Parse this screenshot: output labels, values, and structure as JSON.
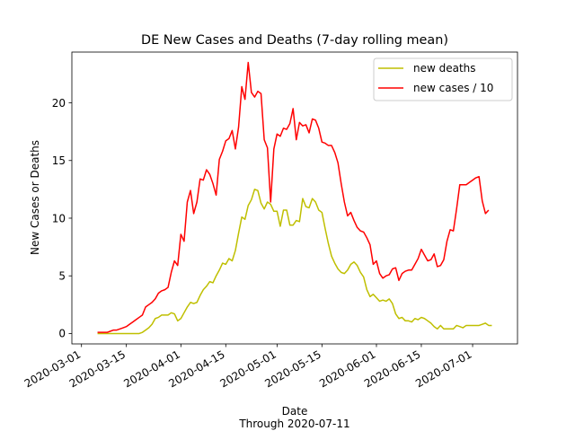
{
  "chart_data": {
    "type": "line",
    "title": "DE New Cases and Deaths (7-day rolling mean)",
    "xlabel": "Date",
    "xlabel_sub": "Through 2020-07-11",
    "ylabel": "New Cases or Deaths",
    "xlim": [
      "2020-02-27",
      "2020-07-15"
    ],
    "ylim": [
      -0.9,
      24.4
    ],
    "x_ticks": [
      "2020-03-01",
      "2020-03-15",
      "2020-04-01",
      "2020-04-15",
      "2020-05-01",
      "2020-05-15",
      "2020-06-01",
      "2020-06-15",
      "2020-07-01"
    ],
    "y_ticks": [
      0,
      5,
      10,
      15,
      20
    ],
    "grid": false,
    "legend_position": "top-right",
    "x_start": "2020-03-06",
    "series": [
      {
        "name": "new deaths",
        "color": "#bfbf00",
        "values": [
          0,
          0,
          0,
          0,
          0,
          0,
          0,
          0,
          0,
          0,
          0,
          0,
          0,
          0,
          0.1,
          0.3,
          0.5,
          0.8,
          1.3,
          1.4,
          1.6,
          1.6,
          1.6,
          1.8,
          1.7,
          1.1,
          1.3,
          1.8,
          2.3,
          2.7,
          2.6,
          2.7,
          3.3,
          3.8,
          4.1,
          4.5,
          4.4,
          5.0,
          5.5,
          6.1,
          6.0,
          6.5,
          6.3,
          7.2,
          8.7,
          10.1,
          9.9,
          11.1,
          11.6,
          12.5,
          12.4,
          11.3,
          10.8,
          11.4,
          11.2,
          10.6,
          10.6,
          9.3,
          10.7,
          10.7,
          9.4,
          9.4,
          9.8,
          9.7,
          11.7,
          11.0,
          10.9,
          11.7,
          11.4,
          10.7,
          10.5,
          9.1,
          7.8,
          6.7,
          6.1,
          5.6,
          5.3,
          5.2,
          5.5,
          6.0,
          6.2,
          5.9,
          5.3,
          4.9,
          3.8,
          3.2,
          3.4,
          3.1,
          2.8,
          2.9,
          2.8,
          3.0,
          2.6,
          1.7,
          1.3,
          1.4,
          1.1,
          1.1,
          1.0,
          1.3,
          1.2,
          1.4,
          1.3,
          1.1,
          0.9,
          0.6,
          0.4,
          0.7,
          0.4,
          0.4,
          0.4,
          0.4,
          0.7,
          0.6,
          0.5,
          0.7,
          0.7,
          0.7,
          0.7,
          0.7,
          0.8,
          0.9,
          0.7,
          0.7
        ]
      },
      {
        "name": "new cases / 10",
        "color": "#ff0000",
        "values": [
          0.1,
          0.1,
          0.1,
          0.1,
          0.2,
          0.3,
          0.3,
          0.4,
          0.5,
          0.6,
          0.8,
          1.0,
          1.2,
          1.4,
          1.6,
          2.3,
          2.5,
          2.7,
          3.0,
          3.5,
          3.7,
          3.8,
          4.0,
          5.3,
          6.3,
          5.9,
          8.6,
          8.0,
          11.4,
          12.4,
          10.4,
          11.4,
          13.4,
          13.3,
          14.2,
          13.8,
          13.0,
          12.0,
          15.1,
          15.8,
          16.7,
          16.9,
          17.6,
          16.0,
          17.9,
          21.4,
          20.3,
          23.5,
          20.9,
          20.5,
          21.0,
          20.8,
          16.8,
          16.1,
          11.4,
          16.0,
          17.3,
          17.1,
          17.8,
          17.7,
          18.2,
          19.5,
          16.8,
          18.3,
          18.0,
          18.1,
          17.4,
          18.6,
          18.5,
          17.8,
          16.6,
          16.5,
          16.3,
          16.3,
          15.7,
          14.8,
          13.0,
          11.4,
          10.2,
          10.5,
          9.8,
          9.2,
          8.9,
          8.8,
          8.3,
          7.7,
          6.0,
          6.3,
          5.2,
          4.8,
          5.0,
          5.1,
          5.6,
          5.7,
          4.6,
          5.2,
          5.4,
          5.5,
          5.5,
          6.0,
          6.5,
          7.3,
          6.8,
          6.3,
          6.4,
          6.9,
          5.8,
          5.9,
          6.4,
          8.0,
          9.0,
          8.9,
          10.8,
          12.9,
          12.9,
          12.9,
          13.1,
          13.3,
          13.5,
          13.6,
          11.5,
          10.4,
          10.7
        ]
      }
    ]
  }
}
